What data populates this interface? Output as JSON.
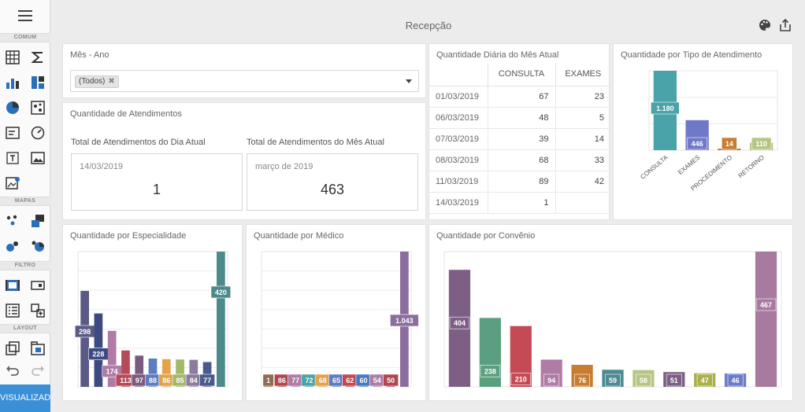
{
  "toolbox": {
    "sections": [
      "COMUM",
      "MAPAS",
      "FILTRO",
      "LAYOUT"
    ],
    "visualizar_label": "VISUALIZADO"
  },
  "header": {
    "title": "Recepção"
  },
  "filter": {
    "title": "Mês - Ano",
    "selected_tag": "(Todos)"
  },
  "atendimentos": {
    "title": "Quantidade de Atendimentos",
    "dia": {
      "label": "Total de Atendimentos do Dia Atual",
      "date": "14/03/2019",
      "value": "1"
    },
    "mes": {
      "label": "Total de Atendimentos do Mês Atual",
      "date": "março de 2019",
      "value": "463"
    }
  },
  "daily": {
    "title": "Quantidade Diária do Mês Atual",
    "columns": [
      "",
      "CONSULTA",
      "EXAMES"
    ],
    "rows": [
      [
        "01/03/2019",
        "67",
        "23"
      ],
      [
        "06/03/2019",
        "48",
        "5"
      ],
      [
        "07/03/2019",
        "39",
        "14"
      ],
      [
        "08/03/2019",
        "68",
        "33"
      ],
      [
        "11/03/2019",
        "89",
        "42"
      ],
      [
        "14/03/2019",
        "1",
        ""
      ]
    ]
  },
  "chart_data": [
    {
      "type": "bar",
      "title": "Quantidade por Tipo de Atendimento",
      "categories": [
        "CONSULTA",
        "EXAMES",
        "PROCEDIMENTO",
        "RETORNO"
      ],
      "values": [
        1180,
        446,
        14,
        110
      ],
      "value_labels": [
        "1.180",
        "446",
        "14",
        "110"
      ],
      "colors": [
        "#4aa3a8",
        "#7078c8",
        "#c87e32",
        "#b7c584"
      ],
      "ylim": [
        0,
        1180
      ],
      "grid": true
    },
    {
      "type": "bar",
      "title": "Quantidade por Especialidade",
      "values": [
        298,
        228,
        174,
        113,
        97,
        88,
        86,
        85,
        84,
        77,
        420
      ],
      "value_labels": [
        "298",
        "228",
        "174",
        "113",
        "97",
        "88",
        "86",
        "85",
        "84",
        "77",
        "420"
      ],
      "colors": [
        "#5b5a86",
        "#3d4a82",
        "#b07ba4",
        "#b64a58",
        "#7a5a7e",
        "#5d7dc0",
        "#e4a34a",
        "#a4b86c",
        "#8d7b9e",
        "#4a5a8a",
        "#4d8a8c"
      ],
      "ylim": [
        0,
        420
      ],
      "grid": true
    },
    {
      "type": "bar",
      "title": "Quantidade por Médico",
      "values": [
        1,
        86,
        77,
        72,
        68,
        65,
        62,
        60,
        54,
        50,
        1043
      ],
      "value_labels": [
        "1",
        "86",
        "77",
        "72",
        "68",
        "65",
        "62",
        "60",
        "54",
        "50",
        "1.043"
      ],
      "colors": [
        "#8e6b52",
        "#b04650",
        "#b07ba4",
        "#4aa3a8",
        "#e4a34a",
        "#5d7dc0",
        "#c4484f",
        "#4878c0",
        "#b07ba4",
        "#b04650",
        "#8b6e9e"
      ],
      "ylim": [
        0,
        1043
      ],
      "grid": true
    },
    {
      "type": "bar",
      "title": "Quantidade por Convênio",
      "values": [
        404,
        238,
        210,
        94,
        76,
        59,
        58,
        51,
        47,
        46,
        467
      ],
      "value_labels": [
        "404",
        "238",
        "210",
        "94",
        "76",
        "59",
        "58",
        "51",
        "47",
        "46",
        "467"
      ],
      "colors": [
        "#7d5f85",
        "#5aa07f",
        "#c44a55",
        "#b07ba4",
        "#c87e32",
        "#4d8a92",
        "#b7c584",
        "#7d5f85",
        "#a9b04c",
        "#6a7cc8",
        "#a87aa0"
      ],
      "ylim": [
        0,
        467
      ],
      "grid": true
    }
  ]
}
